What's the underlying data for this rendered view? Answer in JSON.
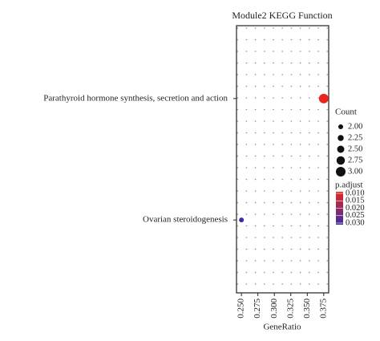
{
  "chart_data": {
    "type": "dotplot",
    "title": "Module2 KEGG Function",
    "categories": [
      "Parathyroid hormone synthesis, secretion and action",
      "Ovarian steroidogenesis"
    ],
    "values": [
      0.375,
      0.25
    ],
    "size": [
      3,
      2
    ],
    "p_adjust": [
      0.01,
      0.03
    ],
    "xlabel": "GeneRatio",
    "xlim": [
      0.2425,
      0.3825
    ],
    "xticks": [
      {
        "value": 0.25,
        "label": "0.250"
      },
      {
        "value": 0.275,
        "label": "0.275"
      },
      {
        "value": 0.3,
        "label": "0.300"
      },
      {
        "value": 0.325,
        "label": "0.325"
      },
      {
        "value": 0.35,
        "label": "0.350"
      },
      {
        "value": 0.375,
        "label": "0.375"
      }
    ],
    "size_title": "Count",
    "size_ticks": [
      {
        "value": 2,
        "label": "2.00"
      },
      {
        "value": 2.25,
        "label": "2.25"
      },
      {
        "value": 2.5,
        "label": "2.50"
      },
      {
        "value": 2.75,
        "label": "2.75"
      },
      {
        "value": 3,
        "label": "3.00"
      }
    ],
    "color_title": "p.adjust",
    "color_ticks": [
      {
        "value": 0.01,
        "label": "0.010"
      },
      {
        "value": 0.015,
        "label": "0.015"
      },
      {
        "value": 0.02,
        "label": "0.020"
      },
      {
        "value": 0.025,
        "label": "0.025"
      },
      {
        "value": 0.03,
        "label": "0.030"
      }
    ],
    "color_low": "#e8261e",
    "color_high": "#3a2ea4"
  }
}
